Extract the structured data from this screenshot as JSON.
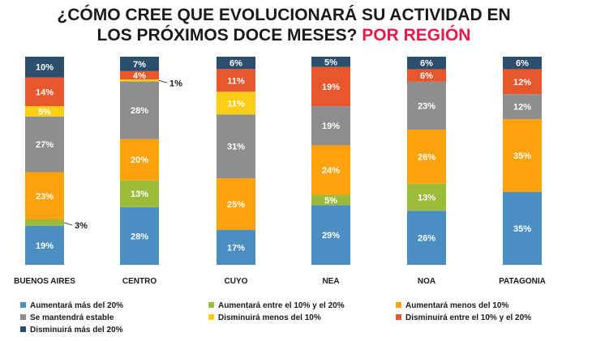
{
  "title": {
    "line1": "¿CÓMO CREE QUE EVOLUCIONARÁ SU ACTIVIDAD EN",
    "line2_main": "LOS PRÓXIMOS DOCE MESES?",
    "line2_accent": "POR REGIÓN"
  },
  "colors": {
    "accent": "#e8194b"
  },
  "chart_data": {
    "type": "bar",
    "stacked": true,
    "normalized": true,
    "title": "¿CÓMO CREE QUE EVOLUCIONARÁ SU ACTIVIDAD EN LOS PRÓXIMOS DOCE MESES? POR REGIÓN",
    "xlabel": "",
    "ylabel": "",
    "categories": [
      "BUENOS AIRES",
      "CENTRO",
      "CUYO",
      "NEA",
      "NOA",
      "PATAGONIA"
    ],
    "series": [
      {
        "name": "Aumentará más del 20%",
        "color": "#4a8ec2",
        "values": [
          19,
          28,
          17,
          29,
          26,
          35
        ]
      },
      {
        "name": "Aumentará entre el 10% y el 20%",
        "color": "#9cbb3b",
        "values": [
          3,
          13,
          0,
          5,
          13,
          0
        ]
      },
      {
        "name": "Aumentará menos del 10%",
        "color": "#fca20c",
        "values": [
          23,
          20,
          25,
          24,
          26,
          35
        ]
      },
      {
        "name": "Se mantendrá estable",
        "color": "#8e8e8e",
        "values": [
          27,
          28,
          31,
          19,
          23,
          12
        ]
      },
      {
        "name": "Disminuirá menos del 10%",
        "color": "#fccd12",
        "values": [
          5,
          1,
          11,
          0,
          0,
          0
        ]
      },
      {
        "name": "Disminuirá entre el 10% y el 20%",
        "color": "#e8572c",
        "values": [
          14,
          4,
          11,
          19,
          6,
          12
        ]
      },
      {
        "name": "Disminuirá más del 20%",
        "color": "#2a4e6c",
        "values": [
          10,
          7,
          6,
          5,
          6,
          6
        ]
      }
    ],
    "legend_position": "bottom",
    "grid": false
  }
}
